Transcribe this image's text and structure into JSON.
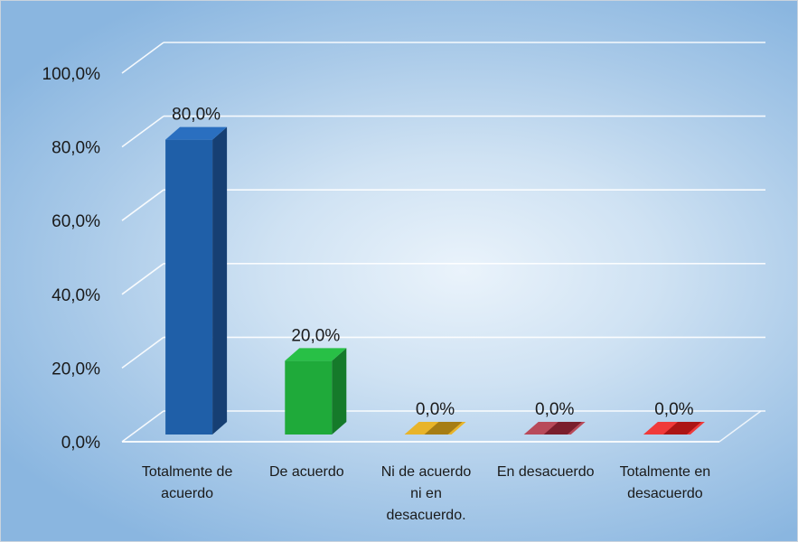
{
  "chart_data": {
    "type": "bar",
    "categories": [
      [
        "Totalmente de",
        "acuerdo"
      ],
      [
        "De acuerdo"
      ],
      [
        "Ni de acuerdo",
        "ni en",
        "desacuerdo."
      ],
      [
        "En desacuerdo"
      ],
      [
        "Totalmente en",
        "desacuerdo"
      ]
    ],
    "values": [
      80.0,
      20.0,
      0.0,
      0.0,
      0.0
    ],
    "data_labels": [
      "80,0%",
      "20,0%",
      "0,0%",
      "0,0%",
      "0,0%"
    ],
    "bar_colors": [
      "#1f5fa8",
      "#1faa3a",
      "#d9a21a",
      "#a0283a",
      "#e01a1a"
    ],
    "bar_side_colors": [
      "#163f73",
      "#157a2a",
      "#9a7310",
      "#6e1626",
      "#a00f0f"
    ],
    "bar_top_colors": [
      "#2a6fc0",
      "#28c046",
      "#e8b42a",
      "#b84a5a",
      "#f03a3a"
    ],
    "y_ticks": [
      0,
      20,
      40,
      60,
      80,
      100
    ],
    "y_tick_labels": [
      "0,0%",
      "20,0%",
      "40,0%",
      "60,0%",
      "80,0%",
      "100,0%"
    ],
    "ylim": [
      0,
      100
    ],
    "grid": true,
    "legend": "none",
    "title": "",
    "xlabel": "",
    "ylabel": ""
  }
}
